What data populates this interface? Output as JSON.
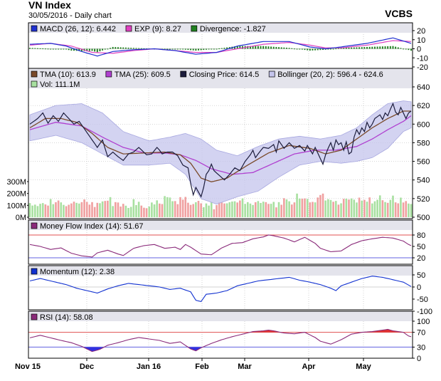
{
  "header": {
    "title": "VN Index",
    "subtitle": "30/05/2016 - Daily chart",
    "brand": "VCBS"
  },
  "colors": {
    "panel_bg": "#ffffff",
    "legend_bg": "#e4e4ec",
    "grid": "#c0c0c0",
    "price": "#1c1c3c",
    "tma10": "#7a4a2a",
    "tma25": "#b040d0",
    "boll_fill": "#c4c4ec",
    "vol_up": "#a8e0a0",
    "vol_down": "#f0a0a0",
    "macd": "#2030d0",
    "exp": "#e040c0",
    "divergence": "#208020",
    "mfi": "#8a2a7a",
    "momentum": "#1030d0",
    "rsi": "#8a2a7a",
    "ref_line": "#e05050",
    "ref_line_low": "#6060e0",
    "rsi_high_fill": "#e03030",
    "rsi_low_fill": "#3030e0"
  },
  "panels": {
    "macd": {
      "legend": [
        {
          "label": "MACD (26, 12): 6.442",
          "color": "#2030d0"
        },
        {
          "label": "EXP (9): 8.27",
          "color": "#e040c0"
        },
        {
          "label": "Divergence: -1.827",
          "color": "#208020"
        }
      ],
      "ticks": [
        "20",
        "10",
        "0",
        "-10",
        "-20"
      ]
    },
    "price": {
      "legend_row1": [
        {
          "label": "TMA (10): 613.9",
          "color": "#7a4a2a"
        },
        {
          "label": "TMA (25): 609.5",
          "color": "#b040d0"
        },
        {
          "label": "Closing Price: 614.5",
          "color": "#1c1c3c"
        },
        {
          "label": "Bollinger (20, 2): 596.4 - 624.6",
          "color": "#c4c4ec"
        }
      ],
      "legend_row2": [
        {
          "label": "Vol: 111.1M",
          "color": "#a8e0a0"
        }
      ],
      "ticks": [
        "640",
        "620",
        "600",
        "580",
        "560",
        "540",
        "520",
        "500"
      ],
      "volume_ticks": [
        "300M",
        "200M",
        "100M",
        "0M"
      ]
    },
    "mfi": {
      "legend": [
        {
          "label": "Money Flow Index (14): 51.67",
          "color": "#8a2a7a"
        }
      ],
      "ticks": [
        "80",
        "50",
        "20"
      ]
    },
    "momentum": {
      "legend": [
        {
          "label": "Momentum (12): 2.38",
          "color": "#1030d0"
        }
      ],
      "ticks": [
        "50",
        "0",
        "-50",
        "-100"
      ]
    },
    "rsi": {
      "legend": [
        {
          "label": "RSI (14): 58.08",
          "color": "#8a2a7a"
        }
      ],
      "ticks": [
        "100",
        "70",
        "30",
        "0"
      ]
    }
  },
  "x_labels": [
    "Nov 15",
    "Dec",
    "Jan 16",
    "Feb",
    "Mar",
    "Apr",
    "May"
  ],
  "chart_data": {
    "type": "line",
    "title": "VN Index",
    "subtitle": "30/05/2016 - Daily chart",
    "x_range": [
      "2015-11-02",
      "2016-05-30"
    ],
    "x_labels": [
      "Nov 15",
      "Dec",
      "Jan 16",
      "Feb",
      "Mar",
      "Apr",
      "May"
    ],
    "price_anchors": [
      [
        0,
        600
      ],
      [
        3,
        606
      ],
      [
        5,
        612
      ],
      [
        7,
        601
      ],
      [
        9,
        609
      ],
      [
        11,
        603
      ],
      [
        13,
        612
      ],
      [
        15,
        606
      ],
      [
        17,
        600
      ],
      [
        19,
        603
      ],
      [
        22,
        591
      ],
      [
        24,
        583
      ],
      [
        26,
        575
      ],
      [
        28,
        583
      ],
      [
        30,
        565
      ],
      [
        32,
        570
      ],
      [
        34,
        565
      ],
      [
        36,
        561
      ],
      [
        38,
        568
      ],
      [
        40,
        570
      ],
      [
        42,
        575
      ],
      [
        45,
        567
      ],
      [
        47,
        568
      ],
      [
        49,
        575
      ],
      [
        50,
        572
      ],
      [
        51,
        568
      ],
      [
        53,
        570
      ],
      [
        55,
        570
      ],
      [
        57,
        566
      ],
      [
        59,
        556
      ],
      [
        61,
        553
      ],
      [
        62,
        536
      ],
      [
        63,
        524
      ],
      [
        64,
        532
      ],
      [
        66,
        522
      ],
      [
        67,
        532
      ],
      [
        68,
        546
      ],
      [
        69,
        550
      ],
      [
        70,
        557
      ],
      [
        71,
        550
      ],
      [
        73,
        545
      ],
      [
        75,
        540
      ],
      [
        77,
        546
      ],
      [
        79,
        553
      ],
      [
        81,
        550
      ],
      [
        83,
        560
      ],
      [
        85,
        567
      ],
      [
        86,
        572
      ],
      [
        87,
        564
      ],
      [
        88,
        568
      ],
      [
        90,
        575
      ],
      [
        92,
        574
      ],
      [
        94,
        578
      ],
      [
        95,
        570
      ],
      [
        96,
        582
      ],
      [
        98,
        574
      ],
      [
        100,
        580
      ],
      [
        102,
        574
      ],
      [
        104,
        577
      ],
      [
        106,
        571
      ],
      [
        107,
        577
      ],
      [
        109,
        568
      ],
      [
        110,
        575
      ],
      [
        112,
        563
      ],
      [
        113,
        557
      ],
      [
        114,
        567
      ],
      [
        115,
        574
      ],
      [
        116,
        580
      ],
      [
        117,
        572
      ],
      [
        118,
        583
      ],
      [
        119,
        578
      ],
      [
        120,
        580
      ],
      [
        121,
        572
      ],
      [
        122,
        581
      ],
      [
        123,
        568
      ],
      [
        124,
        570
      ],
      [
        125,
        586
      ],
      [
        126,
        594
      ],
      [
        127,
        589
      ],
      [
        128,
        596
      ],
      [
        129,
        592
      ],
      [
        130,
        602
      ],
      [
        131,
        596
      ],
      [
        132,
        600
      ],
      [
        133,
        606
      ],
      [
        135,
        610
      ],
      [
        136,
        605
      ],
      [
        137,
        612
      ],
      [
        138,
        609
      ],
      [
        139,
        616
      ],
      [
        140,
        622
      ],
      [
        141,
        613
      ],
      [
        142,
        610
      ],
      [
        143,
        618
      ],
      [
        144,
        612
      ],
      [
        145,
        606
      ],
      [
        146,
        612
      ],
      [
        147,
        614
      ]
    ],
    "tma10_anchors": [
      [
        0,
        596
      ],
      [
        6,
        606
      ],
      [
        12,
        606
      ],
      [
        18,
        602
      ],
      [
        24,
        590
      ],
      [
        30,
        575
      ],
      [
        36,
        568
      ],
      [
        44,
        569
      ],
      [
        52,
        570
      ],
      [
        58,
        567
      ],
      [
        62,
        558
      ],
      [
        66,
        542
      ],
      [
        70,
        538
      ],
      [
        76,
        542
      ],
      [
        84,
        556
      ],
      [
        92,
        569
      ],
      [
        100,
        577
      ],
      [
        108,
        574
      ],
      [
        114,
        568
      ],
      [
        120,
        572
      ],
      [
        126,
        584
      ],
      [
        132,
        596
      ],
      [
        138,
        606
      ],
      [
        144,
        614
      ],
      [
        147,
        614
      ]
    ],
    "tma25_anchors": [
      [
        0,
        594
      ],
      [
        10,
        602
      ],
      [
        20,
        598
      ],
      [
        28,
        586
      ],
      [
        36,
        575
      ],
      [
        44,
        569
      ],
      [
        52,
        569
      ],
      [
        58,
        567
      ],
      [
        64,
        561
      ],
      [
        70,
        552
      ],
      [
        78,
        546
      ],
      [
        86,
        548
      ],
      [
        94,
        558
      ],
      [
        102,
        568
      ],
      [
        110,
        572
      ],
      [
        118,
        572
      ],
      [
        126,
        576
      ],
      [
        132,
        584
      ],
      [
        138,
        594
      ],
      [
        144,
        603
      ],
      [
        147,
        609
      ]
    ],
    "bollinger_upper_anchors": [
      [
        0,
        610
      ],
      [
        10,
        620
      ],
      [
        20,
        622
      ],
      [
        28,
        612
      ],
      [
        36,
        592
      ],
      [
        46,
        582
      ],
      [
        54,
        586
      ],
      [
        60,
        590
      ],
      [
        66,
        584
      ],
      [
        72,
        572
      ],
      [
        80,
        566
      ],
      [
        88,
        576
      ],
      [
        96,
        584
      ],
      [
        104,
        587
      ],
      [
        112,
        584
      ],
      [
        120,
        588
      ],
      [
        126,
        596
      ],
      [
        132,
        610
      ],
      [
        138,
        622
      ],
      [
        144,
        625
      ],
      [
        147,
        624
      ]
    ],
    "bollinger_lower_anchors": [
      [
        0,
        582
      ],
      [
        10,
        588
      ],
      [
        20,
        580
      ],
      [
        28,
        568
      ],
      [
        36,
        556
      ],
      [
        46,
        556
      ],
      [
        54,
        558
      ],
      [
        60,
        546
      ],
      [
        66,
        520
      ],
      [
        72,
        514
      ],
      [
        80,
        522
      ],
      [
        88,
        528
      ],
      [
        96,
        543
      ],
      [
        104,
        556
      ],
      [
        112,
        560
      ],
      [
        120,
        558
      ],
      [
        126,
        560
      ],
      [
        132,
        564
      ],
      [
        138,
        574
      ],
      [
        144,
        592
      ],
      [
        147,
        596
      ]
    ],
    "volume_millions": [
      119,
      98,
      106,
      94,
      113,
      119,
      108,
      98,
      153,
      110,
      126,
      141,
      125,
      104,
      93,
      105,
      116,
      131,
      121,
      115,
      127,
      150,
      129,
      106,
      127,
      86,
      121,
      118,
      133,
      137,
      139,
      169,
      94,
      127,
      124,
      90,
      113,
      97,
      78,
      87,
      152,
      102,
      130,
      98,
      80,
      76,
      90,
      124,
      108,
      142,
      115,
      111,
      178,
      169,
      166,
      135,
      136,
      110,
      169,
      148,
      171,
      122,
      104,
      111,
      126,
      138,
      117,
      84,
      116,
      98,
      129,
      67,
      102,
      125,
      124,
      116,
      117,
      126,
      132,
      134,
      124,
      141,
      159,
      112,
      127,
      115,
      103,
      126,
      136,
      120,
      131,
      127,
      112,
      113,
      129,
      83,
      127,
      105,
      160,
      150,
      134,
      107,
      125,
      199,
      157,
      156,
      158,
      154,
      125,
      129,
      125,
      166,
      187,
      199,
      141,
      152,
      145,
      130,
      137,
      106,
      117,
      155,
      156,
      149,
      158,
      148,
      124,
      165,
      140,
      146,
      131,
      167,
      116,
      134,
      147,
      184,
      143,
      128,
      121,
      146,
      182,
      125,
      117,
      165,
      124,
      136,
      115,
      111
    ],
    "macd_anchors": [
      [
        0,
        5
      ],
      [
        8,
        6
      ],
      [
        14,
        3
      ],
      [
        20,
        -3
      ],
      [
        26,
        -8
      ],
      [
        32,
        -3
      ],
      [
        40,
        -1
      ],
      [
        48,
        0
      ],
      [
        56,
        -2
      ],
      [
        64,
        -6
      ],
      [
        72,
        -4
      ],
      [
        80,
        3
      ],
      [
        90,
        8
      ],
      [
        100,
        8
      ],
      [
        108,
        2
      ],
      [
        114,
        0
      ],
      [
        120,
        2
      ],
      [
        130,
        6
      ],
      [
        140,
        12
      ],
      [
        147,
        6
      ]
    ],
    "exp_anchors": [
      [
        0,
        4
      ],
      [
        8,
        6
      ],
      [
        16,
        3
      ],
      [
        24,
        -4
      ],
      [
        32,
        -5
      ],
      [
        40,
        -2
      ],
      [
        48,
        0
      ],
      [
        56,
        -2
      ],
      [
        64,
        -4
      ],
      [
        72,
        -4
      ],
      [
        80,
        0
      ],
      [
        90,
        5
      ],
      [
        100,
        7
      ],
      [
        108,
        4
      ],
      [
        114,
        1
      ],
      [
        120,
        1
      ],
      [
        130,
        4
      ],
      [
        140,
        9
      ],
      [
        147,
        8
      ]
    ],
    "mfi_anchors": [
      [
        0,
        55
      ],
      [
        4,
        50
      ],
      [
        8,
        42
      ],
      [
        12,
        46
      ],
      [
        16,
        32
      ],
      [
        20,
        25
      ],
      [
        24,
        22
      ],
      [
        26,
        33
      ],
      [
        30,
        40
      ],
      [
        34,
        30
      ],
      [
        36,
        26
      ],
      [
        40,
        45
      ],
      [
        44,
        52
      ],
      [
        48,
        55
      ],
      [
        52,
        45
      ],
      [
        56,
        48
      ],
      [
        58,
        42
      ],
      [
        60,
        55
      ],
      [
        62,
        48
      ],
      [
        66,
        30
      ],
      [
        70,
        28
      ],
      [
        74,
        46
      ],
      [
        78,
        58
      ],
      [
        82,
        60
      ],
      [
        86,
        70
      ],
      [
        90,
        75
      ],
      [
        92,
        80
      ],
      [
        94,
        78
      ],
      [
        98,
        72
      ],
      [
        102,
        62
      ],
      [
        106,
        74
      ],
      [
        110,
        58
      ],
      [
        112,
        45
      ],
      [
        116,
        36
      ],
      [
        120,
        38
      ],
      [
        124,
        55
      ],
      [
        128,
        65
      ],
      [
        132,
        70
      ],
      [
        136,
        74
      ],
      [
        140,
        72
      ],
      [
        144,
        64
      ],
      [
        146,
        55
      ],
      [
        147,
        52
      ]
    ],
    "momentum_anchors": [
      [
        0,
        25
      ],
      [
        4,
        35
      ],
      [
        6,
        30
      ],
      [
        10,
        20
      ],
      [
        14,
        10
      ],
      [
        18,
        -5
      ],
      [
        22,
        -15
      ],
      [
        26,
        -25
      ],
      [
        30,
        -8
      ],
      [
        34,
        5
      ],
      [
        38,
        15
      ],
      [
        42,
        10
      ],
      [
        46,
        5
      ],
      [
        50,
        0
      ],
      [
        54,
        -10
      ],
      [
        58,
        -5
      ],
      [
        62,
        -20
      ],
      [
        64,
        -55
      ],
      [
        66,
        -60
      ],
      [
        68,
        -30
      ],
      [
        72,
        -25
      ],
      [
        76,
        -15
      ],
      [
        80,
        5
      ],
      [
        84,
        15
      ],
      [
        88,
        25
      ],
      [
        92,
        30
      ],
      [
        96,
        35
      ],
      [
        100,
        40
      ],
      [
        104,
        28
      ],
      [
        108,
        20
      ],
      [
        112,
        10
      ],
      [
        116,
        -5
      ],
      [
        118,
        -15
      ],
      [
        120,
        5
      ],
      [
        124,
        20
      ],
      [
        128,
        35
      ],
      [
        132,
        45
      ],
      [
        136,
        40
      ],
      [
        140,
        30
      ],
      [
        144,
        20
      ],
      [
        147,
        2
      ]
    ],
    "rsi_anchors": [
      [
        0,
        55
      ],
      [
        4,
        62
      ],
      [
        8,
        55
      ],
      [
        12,
        48
      ],
      [
        16,
        42
      ],
      [
        20,
        32
      ],
      [
        24,
        18
      ],
      [
        27,
        24
      ],
      [
        30,
        35
      ],
      [
        34,
        42
      ],
      [
        38,
        50
      ],
      [
        42,
        56
      ],
      [
        46,
        52
      ],
      [
        50,
        48
      ],
      [
        54,
        40
      ],
      [
        58,
        44
      ],
      [
        62,
        25
      ],
      [
        64,
        20
      ],
      [
        66,
        28
      ],
      [
        70,
        40
      ],
      [
        74,
        50
      ],
      [
        78,
        58
      ],
      [
        82,
        65
      ],
      [
        86,
        72
      ],
      [
        90,
        74
      ],
      [
        92,
        76
      ],
      [
        94,
        74
      ],
      [
        98,
        68
      ],
      [
        102,
        66
      ],
      [
        106,
        70
      ],
      [
        110,
        56
      ],
      [
        112,
        46
      ],
      [
        116,
        38
      ],
      [
        120,
        50
      ],
      [
        124,
        65
      ],
      [
        128,
        70
      ],
      [
        132,
        72
      ],
      [
        136,
        76
      ],
      [
        138,
        78
      ],
      [
        140,
        74
      ],
      [
        144,
        70
      ],
      [
        146,
        60
      ],
      [
        147,
        58
      ]
    ]
  }
}
